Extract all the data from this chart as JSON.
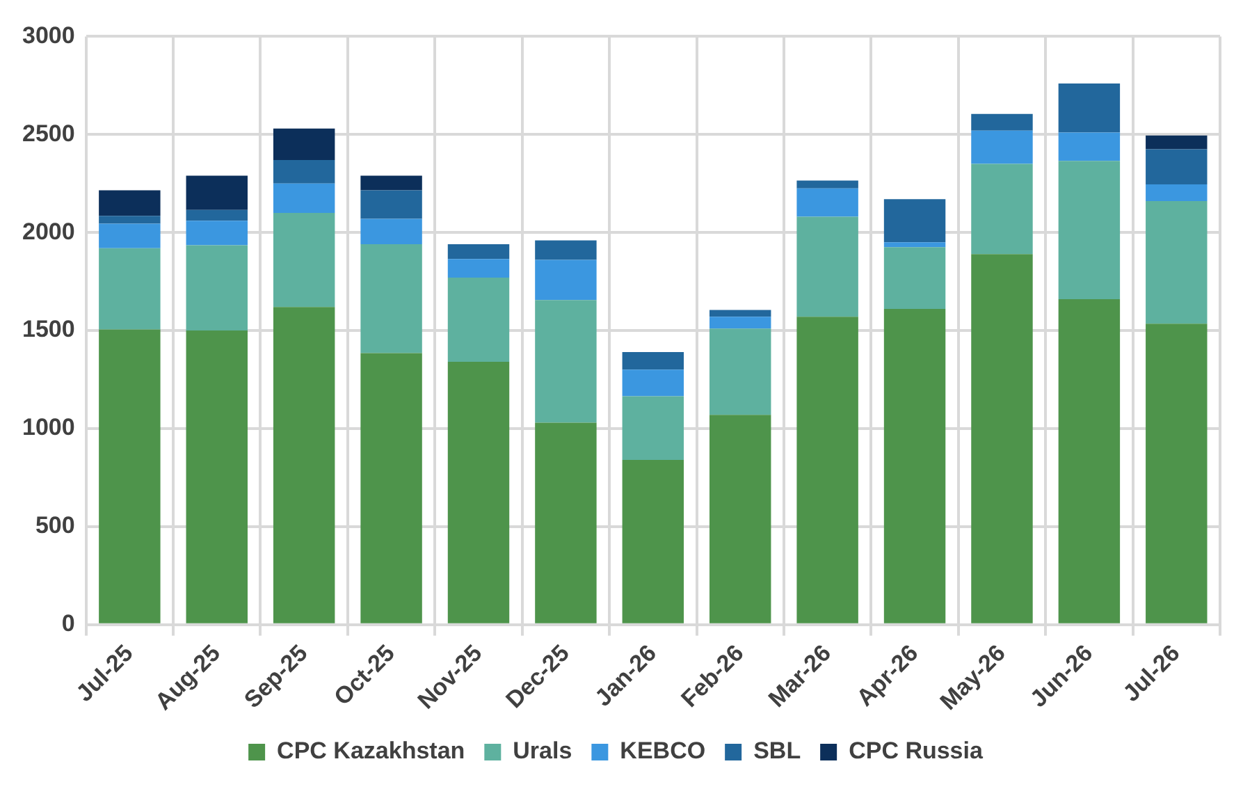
{
  "chart_data": {
    "type": "bar",
    "stacked": true,
    "categories": [
      "Jul-25",
      "Aug-25",
      "Sep-25",
      "Oct-25",
      "Nov-25",
      "Dec-25",
      "Jan-26",
      "Feb-26",
      "Mar-26",
      "Apr-26",
      "May-26",
      "Jun-26",
      "Jul-26"
    ],
    "series": [
      {
        "name": "CPC Kazakhstan",
        "color": "#4e944b",
        "values": [
          1505,
          1500,
          1620,
          1385,
          1340,
          1030,
          840,
          1070,
          1570,
          1610,
          1890,
          1660,
          1535
        ]
      },
      {
        "name": "Urals",
        "color": "#5eb19f",
        "values": [
          415,
          435,
          480,
          555,
          430,
          625,
          325,
          440,
          510,
          315,
          460,
          705,
          625
        ]
      },
      {
        "name": "KEBCO",
        "color": "#3b97e0",
        "values": [
          125,
          125,
          150,
          130,
          95,
          205,
          135,
          60,
          145,
          25,
          170,
          145,
          85
        ]
      },
      {
        "name": "SBL",
        "color": "#22679c",
        "values": [
          40,
          55,
          120,
          145,
          75,
          100,
          90,
          35,
          40,
          220,
          85,
          250,
          180
        ]
      },
      {
        "name": "CPC Russia",
        "color": "#0c2f5a",
        "values": [
          130,
          175,
          160,
          75,
          0,
          0,
          0,
          0,
          0,
          0,
          0,
          0,
          70
        ]
      }
    ],
    "ylim": [
      0,
      3000
    ],
    "yticks": [
      0,
      500,
      1000,
      1500,
      2000,
      2500,
      3000
    ],
    "grid": true,
    "legend": "bottom"
  }
}
